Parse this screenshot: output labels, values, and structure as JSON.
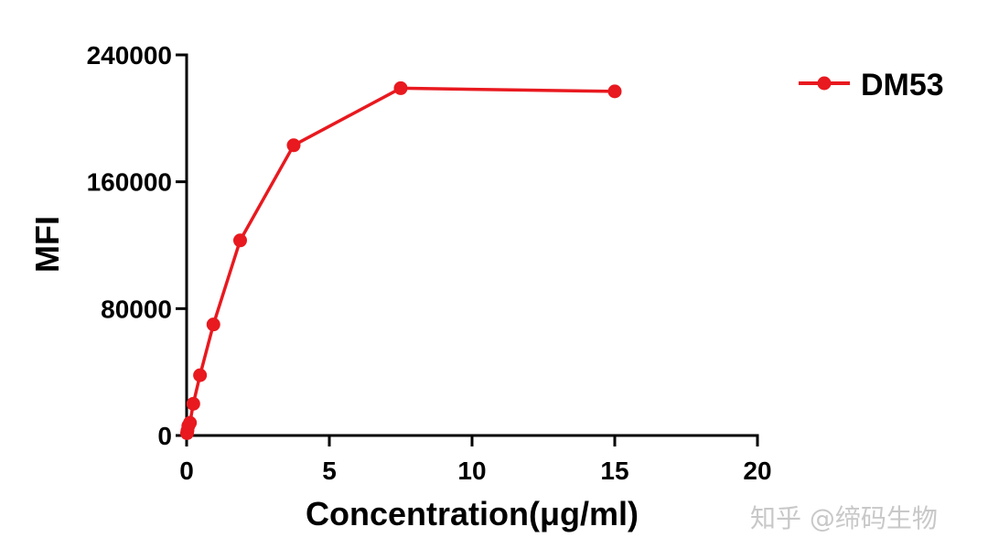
{
  "colors": {
    "series": "#e8191f",
    "axis": "#000000",
    "watermark": "#c8c8c8"
  },
  "watermark": "知乎 @缔码生物",
  "chart_data": {
    "type": "line",
    "title": "",
    "xlabel": "Concentration(μg/ml)",
    "ylabel": "MFI",
    "xlim": [
      0,
      20
    ],
    "ylim": [
      0,
      240000
    ],
    "xticks": [
      "0",
      "5",
      "10",
      "15",
      "20"
    ],
    "yticks": [
      "0",
      "80000",
      "160000",
      "240000"
    ],
    "xtick_values": [
      0,
      5,
      10,
      15,
      20
    ],
    "ytick_values": [
      0,
      80000,
      160000,
      240000
    ],
    "grid": false,
    "legend_position": "top-right",
    "series": [
      {
        "name": "DM53",
        "color": "#e8191f",
        "marker": "circle",
        "x": [
          0.0146,
          0.0293,
          0.0586,
          0.117,
          0.234,
          0.469,
          0.938,
          1.875,
          3.75,
          7.5,
          15
        ],
        "y": [
          1500,
          3000,
          6000,
          8000,
          20000,
          38000,
          70000,
          123000,
          183000,
          219000,
          217000
        ]
      }
    ]
  }
}
